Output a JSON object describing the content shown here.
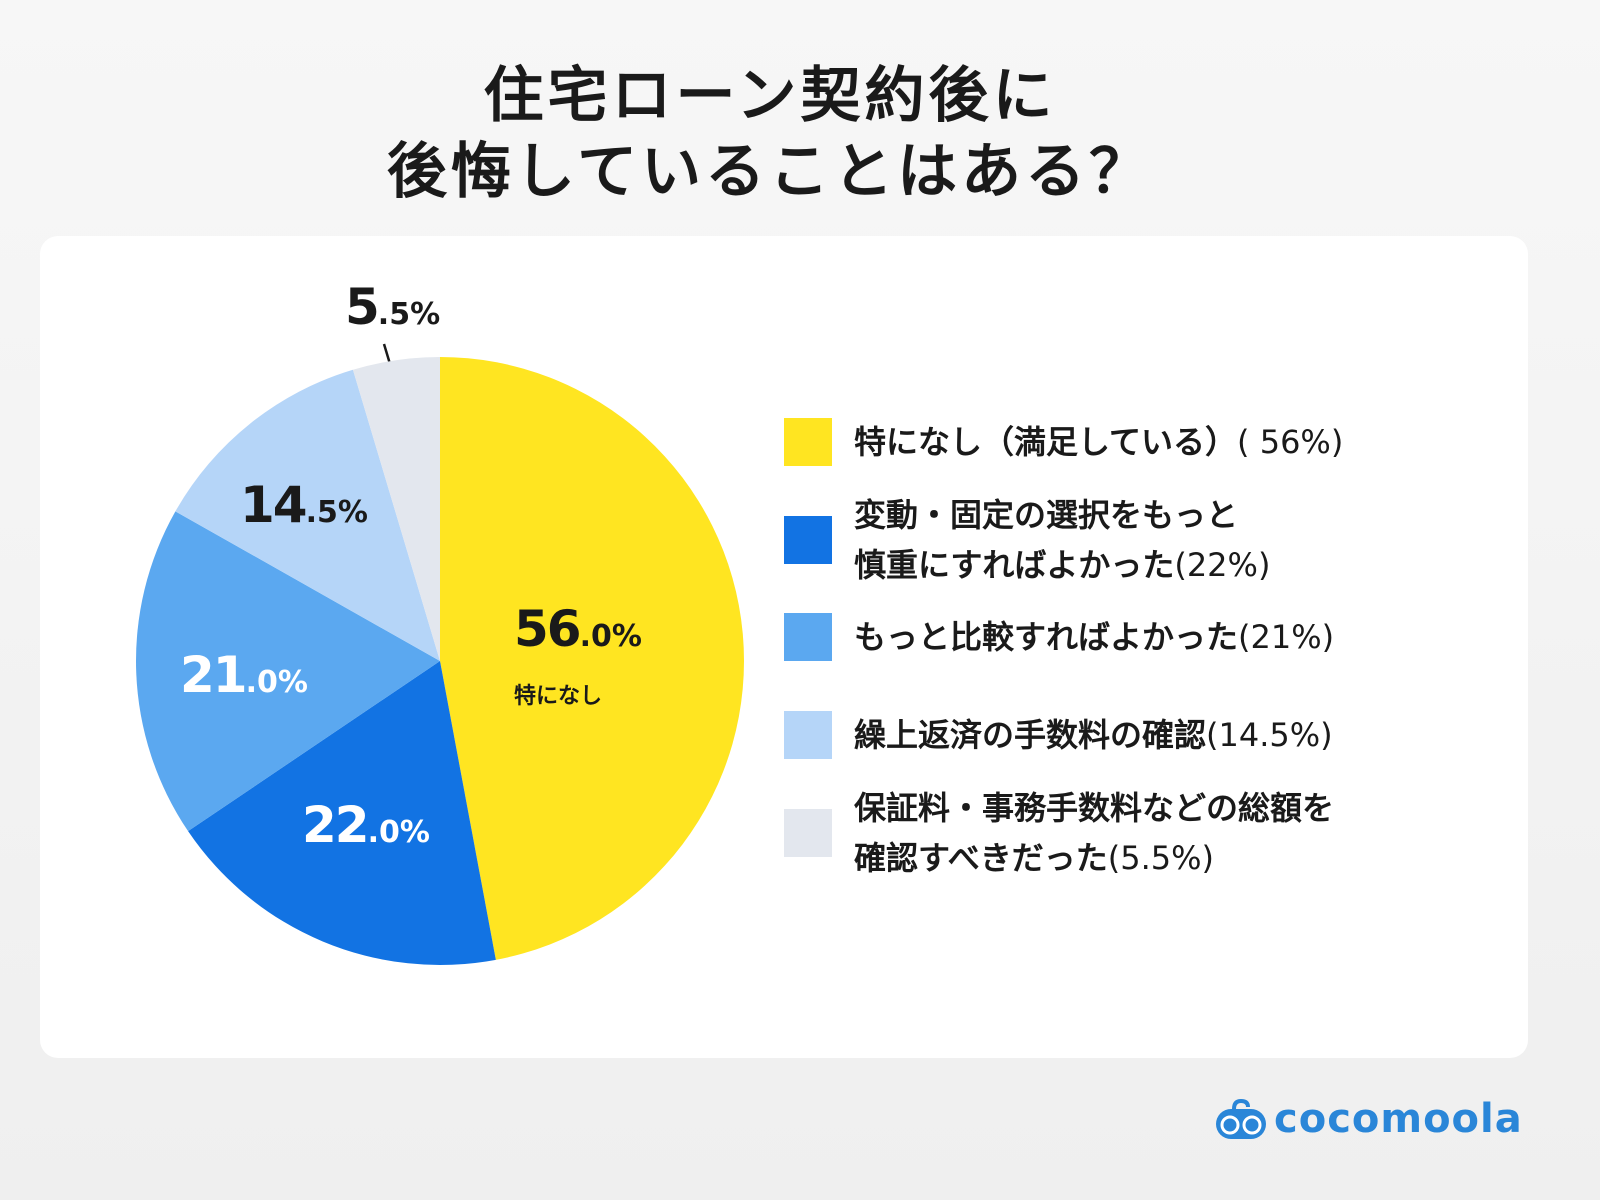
{
  "chart_data": {
    "type": "pie",
    "title": [
      "住宅ローン契約後に",
      "後悔していることはある？"
    ],
    "categories": [
      "特になし（満足している）",
      "変動・固定の選択をもっと慎重にすればよかった",
      "もっと比較すればよかった",
      "繰上返済の手数料の確認",
      "保証料・事務手数料などの総額を確認すべきだった"
    ],
    "values": [
      56,
      22,
      21,
      14.5,
      5.5
    ],
    "colors": [
      "#FFE521",
      "#1273E3",
      "#5BA8F0",
      "#B5D5F8",
      "#E3E7EE"
    ],
    "data_labels": [
      "56.0%",
      "22.0%",
      "21.0%",
      "14.5%",
      "5.5%"
    ],
    "data_label_note": "特になし",
    "legend_placement": "right",
    "legend": [
      {
        "lines": [
          "特になし（満足している）"
        ],
        "pct": "( 56%)"
      },
      {
        "lines": [
          "変動・固定の選択をもっと",
          "慎重にすればよかった"
        ],
        "pct": "(22%)"
      },
      {
        "lines": [
          "もっと比較すればよかった"
        ],
        "pct": "(21%)"
      },
      {
        "lines": [
          "繰上返済の手数料の確認"
        ],
        "pct": "(14.5%)"
      },
      {
        "lines": [
          "保証料・事務手数料などの総額を",
          "確認すべきだった"
        ],
        "pct": "(5.5%)"
      }
    ]
  },
  "brand": {
    "name": "cocomoola",
    "color": "#2A86D8"
  }
}
